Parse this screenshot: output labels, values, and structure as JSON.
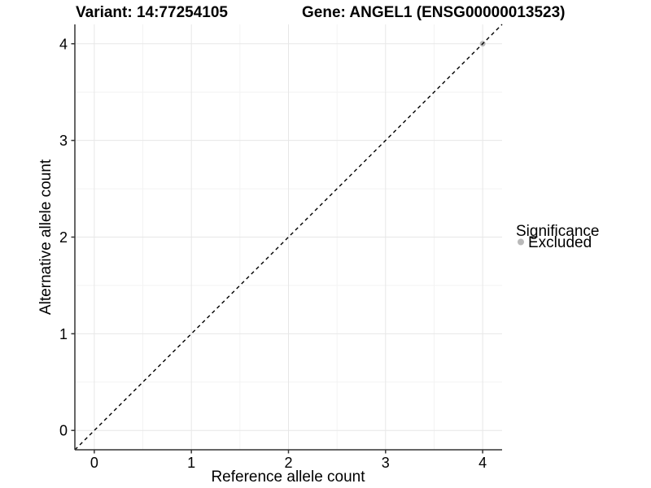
{
  "header": {
    "variant_title": "Variant: 14:77254105",
    "gene_title": "Gene: ANGEL1 (ENSG00000013523)"
  },
  "legend": {
    "title": "Significance",
    "items": [
      {
        "label": "Excluded",
        "color": "#b9b9b9",
        "marker": "circle"
      }
    ],
    "position": "right"
  },
  "chart_data": {
    "type": "scatter",
    "title_left": "Variant: 14:77254105",
    "title_right": "Gene: ANGEL1 (ENSG00000013523)",
    "xlabel": "Reference allele count",
    "ylabel": "Alternative allele count",
    "xlim": [
      -0.2,
      4.2
    ],
    "ylim": [
      -0.2,
      4.2
    ],
    "xticks": [
      0,
      1,
      2,
      3,
      4
    ],
    "yticks": [
      0,
      1,
      2,
      3,
      4
    ],
    "x_minor": [
      0.5,
      1.5,
      2.5,
      3.5
    ],
    "y_minor": [
      0.5,
      1.5,
      2.5,
      3.5
    ],
    "grid": "major+minor",
    "identity_line": {
      "slope": 1,
      "intercept": 0,
      "style": "dashed",
      "color": "#000000"
    },
    "series": [
      {
        "name": "Excluded",
        "color": "#b9b9b9",
        "marker_radius": 3.5,
        "points": [
          [
            4,
            4
          ]
        ]
      }
    ],
    "legend_position": "right"
  },
  "colors": {
    "background": "#ffffff",
    "axis_line": "#333333",
    "tick_mark": "#333333",
    "grid_major": "#e7e7e7",
    "grid_minor": "#f3f3f3",
    "text": "#000000"
  }
}
